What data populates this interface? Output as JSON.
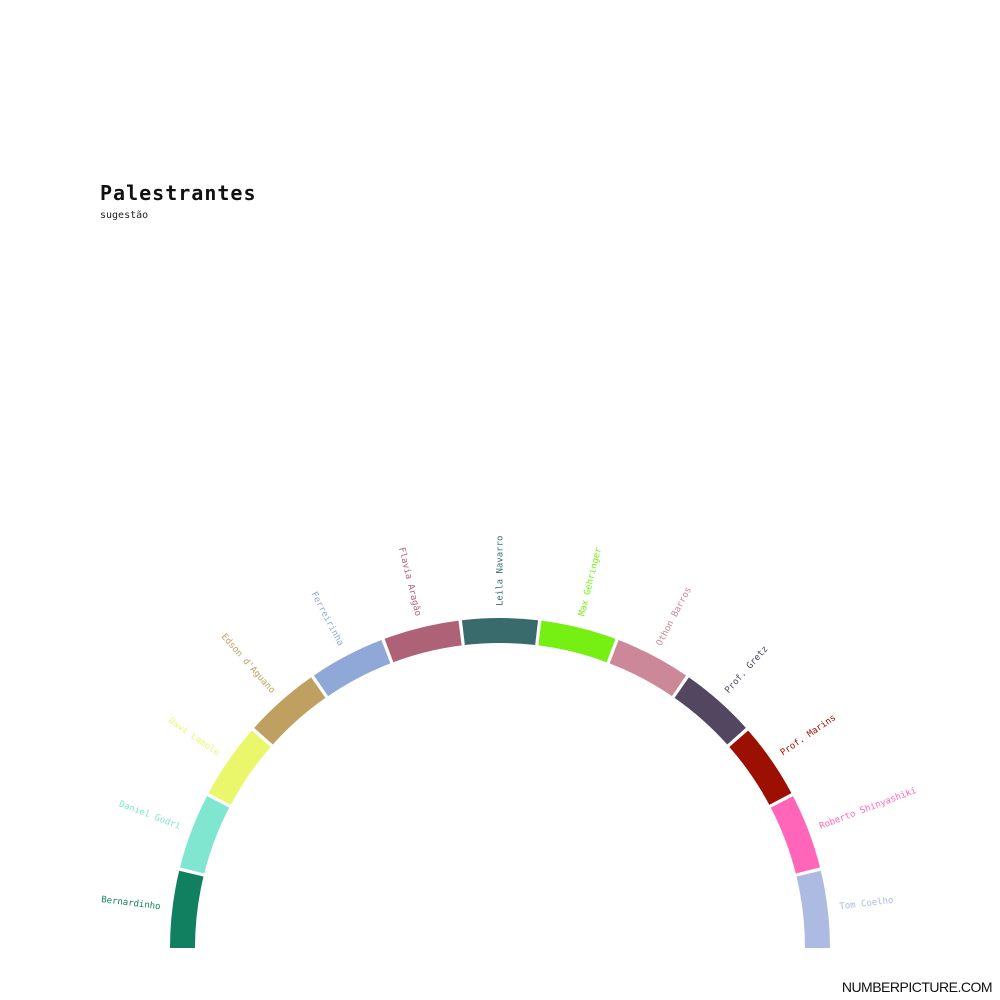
{
  "header": {
    "title": "Palestrantes",
    "subtitle": "sugestão"
  },
  "watermark": "NUMBERPICTURE.COM",
  "chart_data": {
    "type": "pie",
    "layout": "semicircular donut (top half)",
    "title": "Palestrantes",
    "subtitle": "sugestão",
    "categories": [
      "Bernardinho",
      "Daniel Godri",
      "Davi Lamolo",
      "Edson d'Aguano",
      "Ferreirinha",
      "Flavia Aragão",
      "Leila Navarro",
      "Max Gehringer",
      "Othon Barros",
      "Prof. Gretz",
      "Prof. Marins",
      "Roberto Shinyashiki",
      "Tom Coelho"
    ],
    "values": [
      1,
      1,
      1,
      1,
      1,
      1,
      1,
      1,
      1,
      1,
      1,
      1,
      1
    ],
    "colors": [
      "#118060",
      "#80e6d0",
      "#ebf76b",
      "#c0a060",
      "#90a8d8",
      "#ad6278",
      "#3a6b6c",
      "#76f013",
      "#cc8898",
      "#524661",
      "#9b1000",
      "#ff66b9",
      "#adbbe3"
    ]
  }
}
